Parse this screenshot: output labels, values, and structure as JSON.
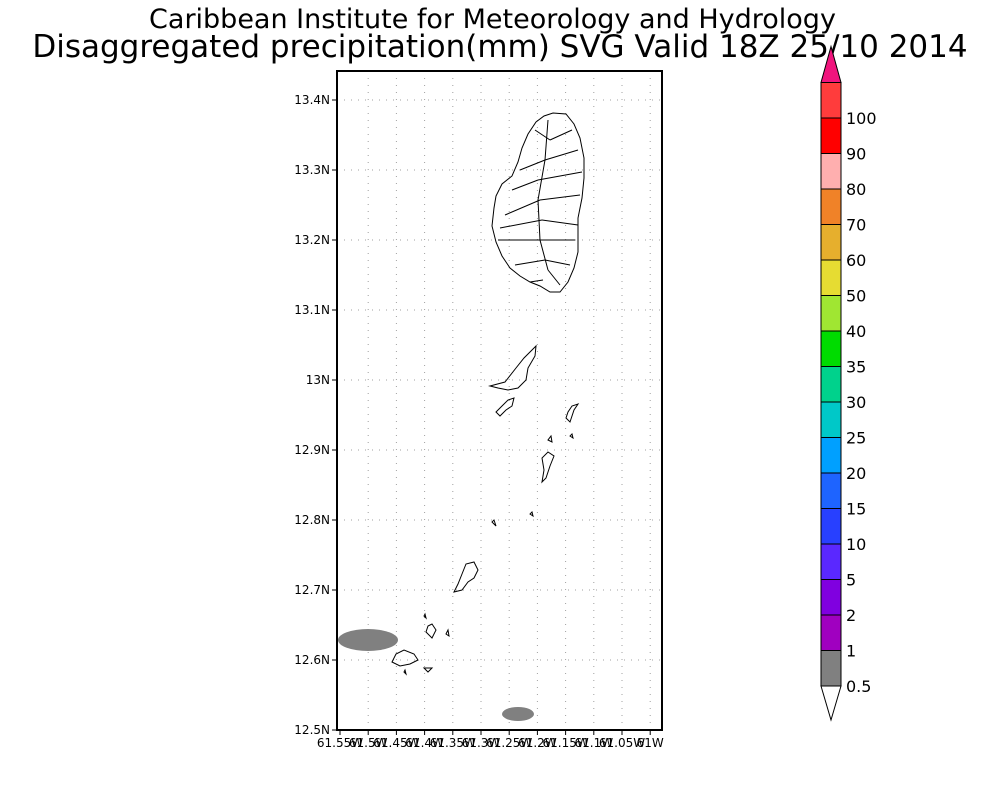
{
  "header": {
    "title": "Caribbean Institute for Meteorology and Hydrology",
    "subtitle": "Disaggregated precipitation(mm) SVG Valid 18Z 25/10 2014"
  },
  "map": {
    "lon_range": [
      -61.55,
      -61.0
    ],
    "lat_range": [
      12.5,
      13.44
    ],
    "grid": true,
    "y_ticks": [
      "12.5N",
      "12.6N",
      "12.7N",
      "12.8N",
      "12.9N",
      "13N",
      "13.1N",
      "13.2N",
      "13.3N",
      "13.4N"
    ],
    "x_ticks": [
      "61.55W",
      "61.5W",
      "61.45W",
      "61.4W",
      "61.35W",
      "61.3W",
      "61.25W",
      "61.2W",
      "61.15W",
      "61.1W",
      "61.05W",
      "61W"
    ]
  },
  "colorbar": {
    "labels": [
      "0.5",
      "1",
      "2",
      "5",
      "10",
      "15",
      "20",
      "25",
      "30",
      "35",
      "40",
      "50",
      "60",
      "70",
      "80",
      "90",
      "100"
    ],
    "colors": [
      "#808080",
      "#a000c0",
      "#8000e0",
      "#5a28ff",
      "#2840ff",
      "#1e64ff",
      "#00a0ff",
      "#00c8c8",
      "#00d28c",
      "#00dc00",
      "#a0e632",
      "#e6dc32",
      "#e6af2d",
      "#f08228",
      "#ffafaf",
      "#ff0000",
      "#ff3c3c"
    ],
    "top_color": "#f0147d",
    "bottom_color": "#ffffff"
  },
  "precip_areas": [
    {
      "name": "west-blob",
      "lon": -61.5,
      "lat": 12.63,
      "value": "0.5"
    },
    {
      "name": "south-blob",
      "lon": -61.245,
      "lat": 12.522,
      "value": "0.5"
    }
  ]
}
